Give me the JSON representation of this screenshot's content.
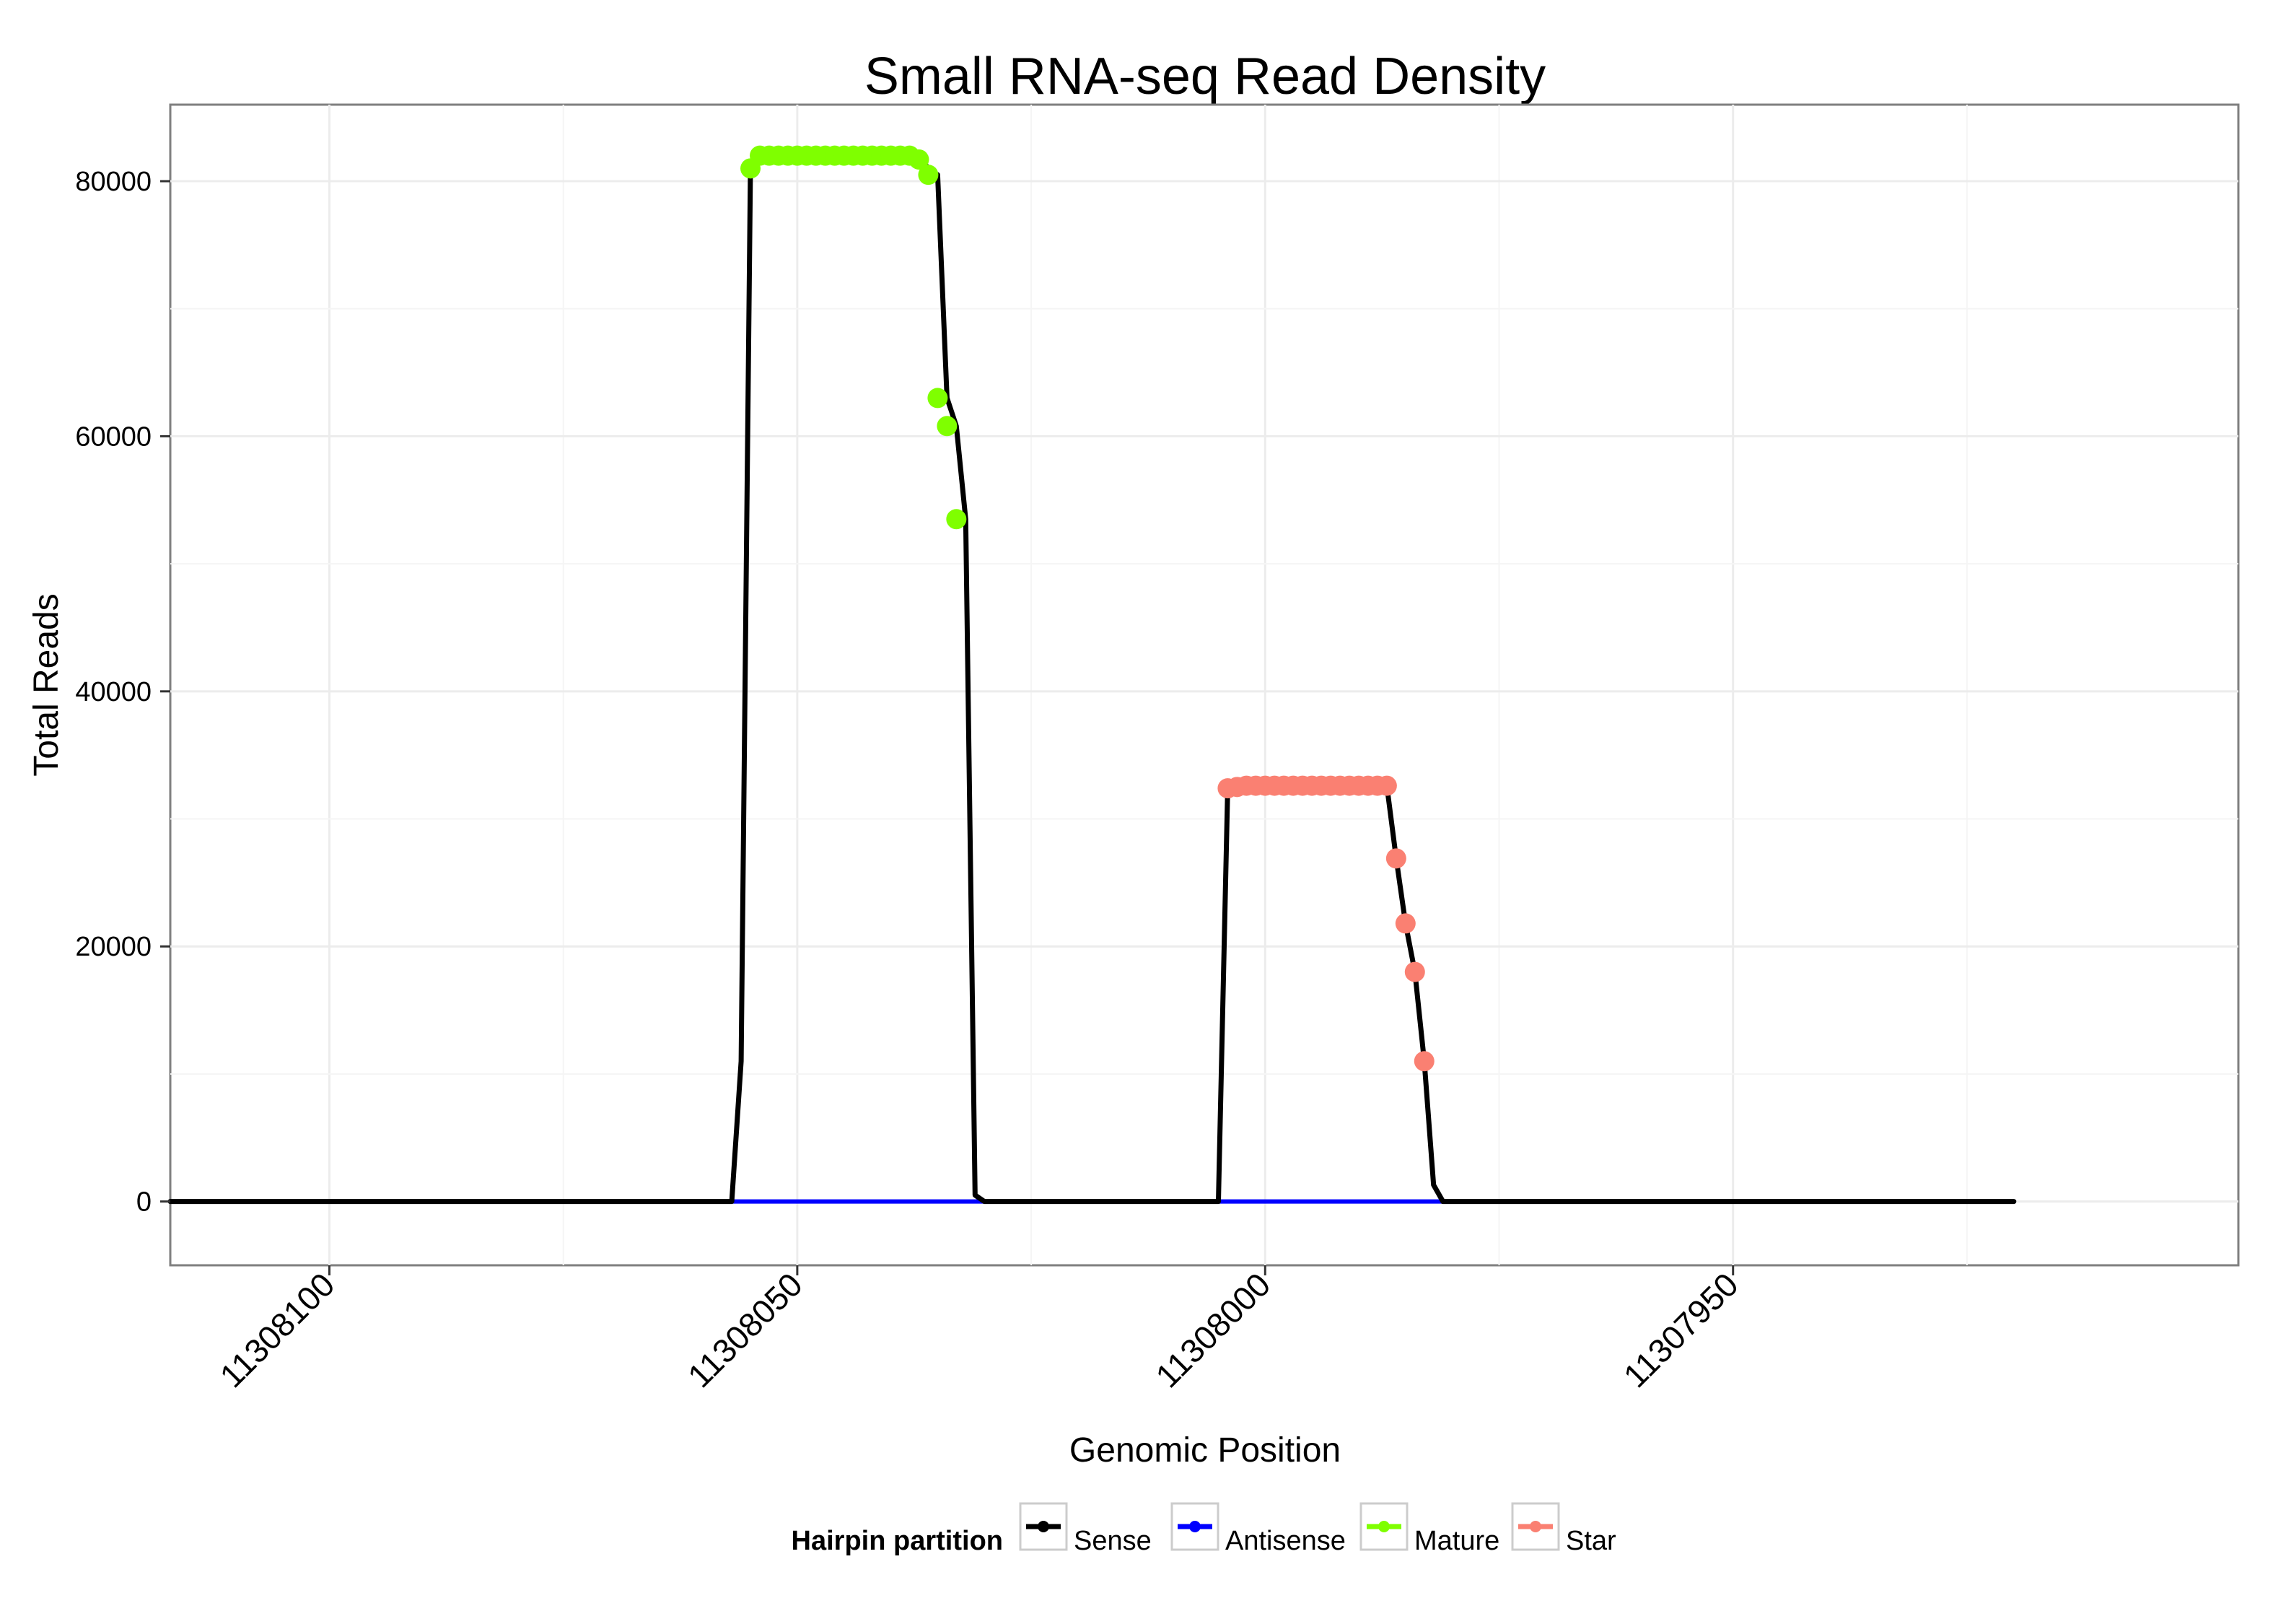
{
  "chart_data": {
    "type": "line",
    "title": "Small RNA-seq Read Density",
    "xlabel": "Genomic Position",
    "ylabel": "Total Reads",
    "x_reversed": true,
    "xlim": [
      11308117,
      11307896
    ],
    "ylim": [
      -5000,
      86000
    ],
    "x_ticks": [
      11308100,
      11308050,
      11308000,
      11307950
    ],
    "x_tick_labels": [
      "11308100",
      "11308050",
      "11308000",
      "11307950"
    ],
    "y_ticks": [
      0,
      20000,
      40000,
      60000,
      80000
    ],
    "y_tick_labels": [
      "0",
      "20000",
      "40000",
      "60000",
      "80000"
    ],
    "grid": true,
    "legend": {
      "title": "Hairpin partition",
      "position": "bottom",
      "entries": [
        "Sense",
        "Antisense",
        "Mature",
        "Star"
      ]
    },
    "colors": {
      "Sense": "#000000",
      "Antisense": "#0000ff",
      "Mature": "#7fff00",
      "Star": "#fa8072"
    },
    "series": [
      {
        "name": "Sense",
        "line": [
          [
            11308117,
            0
          ],
          [
            11308057,
            0
          ],
          [
            11308056,
            11000
          ],
          [
            11308055,
            81000
          ],
          [
            11308054,
            82000
          ],
          [
            11308037,
            82000
          ],
          [
            11308036,
            81000
          ],
          [
            11308035,
            80500
          ],
          [
            11308034,
            63000
          ],
          [
            11308033,
            60800
          ],
          [
            11308032,
            53500
          ],
          [
            11308031,
            500
          ],
          [
            11308030,
            0
          ],
          [
            11308005,
            0
          ],
          [
            11308004,
            32400
          ],
          [
            11308003,
            32500
          ],
          [
            11307987,
            32600
          ],
          [
            11307986,
            26900
          ],
          [
            11307985,
            21800
          ],
          [
            11307984,
            18000
          ],
          [
            11307983,
            11000
          ],
          [
            11307982,
            1300
          ],
          [
            11307981,
            0
          ],
          [
            11307920,
            0
          ]
        ]
      },
      {
        "name": "Antisense",
        "line": [
          [
            11308057,
            0
          ],
          [
            11308031,
            0
          ],
          [
            11308005,
            0
          ],
          [
            11307981,
            0
          ]
        ]
      },
      {
        "name": "Mature",
        "points": [
          [
            11308055,
            81000
          ],
          [
            11308054,
            82000
          ],
          [
            11308053,
            82000
          ],
          [
            11308052,
            82000
          ],
          [
            11308051,
            82000
          ],
          [
            11308050,
            82000
          ],
          [
            11308049,
            82000
          ],
          [
            11308048,
            82000
          ],
          [
            11308047,
            82000
          ],
          [
            11308046,
            82000
          ],
          [
            11308045,
            82000
          ],
          [
            11308044,
            82000
          ],
          [
            11308043,
            82000
          ],
          [
            11308042,
            82000
          ],
          [
            11308041,
            82000
          ],
          [
            11308040,
            82000
          ],
          [
            11308039,
            82000
          ],
          [
            11308038,
            82000
          ],
          [
            11308037,
            81700
          ],
          [
            11308036,
            80500
          ],
          [
            11308035,
            63000
          ],
          [
            11308034,
            60800
          ],
          [
            11308033,
            53500
          ]
        ]
      },
      {
        "name": "Star",
        "points": [
          [
            11308004,
            32400
          ],
          [
            11308003,
            32500
          ],
          [
            11308002,
            32600
          ],
          [
            11308001,
            32600
          ],
          [
            11308000,
            32600
          ],
          [
            11307999,
            32600
          ],
          [
            11307998,
            32600
          ],
          [
            11307997,
            32600
          ],
          [
            11307996,
            32600
          ],
          [
            11307995,
            32600
          ],
          [
            11307994,
            32600
          ],
          [
            11307993,
            32600
          ],
          [
            11307992,
            32600
          ],
          [
            11307991,
            32600
          ],
          [
            11307990,
            32600
          ],
          [
            11307989,
            32600
          ],
          [
            11307988,
            32600
          ],
          [
            11307987,
            32600
          ],
          [
            11307986,
            26900
          ],
          [
            11307985,
            21800
          ],
          [
            11307984,
            18000
          ],
          [
            11307983,
            11000
          ]
        ]
      }
    ]
  }
}
